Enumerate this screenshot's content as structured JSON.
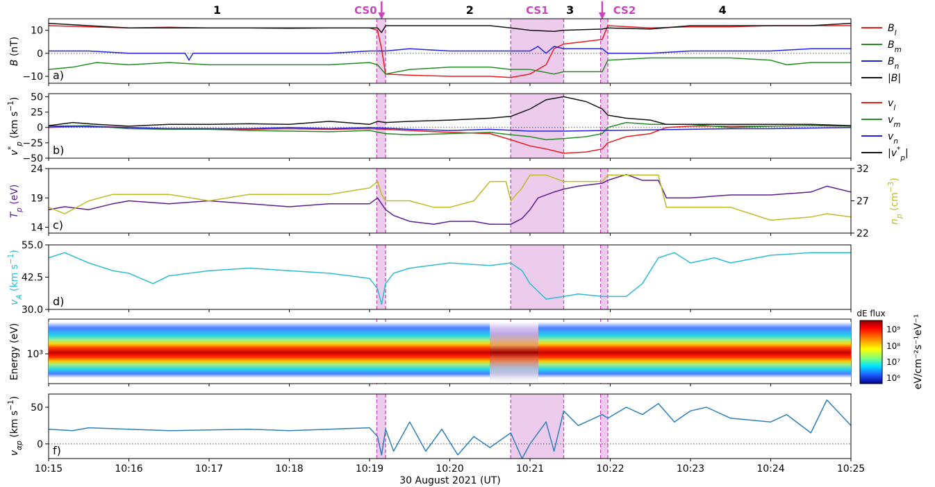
{
  "chart_data": {
    "type": "line",
    "xlabel": "30 August 2021 (UT)",
    "xticks": [
      "10:15",
      "10:16",
      "10:17",
      "10:18",
      "10:19",
      "10:20",
      "10:21",
      "10:22",
      "10:23",
      "10:24",
      "10:25"
    ],
    "xlim_min": [
      0,
      10
    ],
    "regions": [
      {
        "label": "1",
        "center_min": 2.1
      },
      {
        "label": "2",
        "center_min": 5.25
      },
      {
        "label": "3",
        "center_min": 6.5
      },
      {
        "label": "4",
        "center_min": 8.4
      }
    ],
    "current_sheets": [
      {
        "label": "CS0",
        "start_min": 4.09,
        "end_min": 4.2,
        "arrow_min": 4.15
      },
      {
        "label": "CS1",
        "start_min": 5.76,
        "end_min": 6.42
      },
      {
        "label": "CS2",
        "start_min": 6.88,
        "end_min": 6.97,
        "arrow_min": 6.9
      }
    ],
    "colors": {
      "red": "#e41a1c",
      "green": "#228b22",
      "blue": "#1f1fe0",
      "black": "#111111",
      "purple": "#5b1a8f",
      "olive": "#bcbd22",
      "cyan": "#2bbccf",
      "steel": "#2c7fb8",
      "shade": "#dda0dd",
      "cs": "#cc44bb"
    },
    "panels": [
      {
        "id": "a",
        "label": "a)",
        "ylabel": "B (nT)",
        "ylim": [
          -13,
          15
        ],
        "yticks": [
          "10",
          "0",
          "−10"
        ],
        "yticks_val": [
          10,
          0,
          -10
        ],
        "zero_line": true,
        "legend": [
          "B_l",
          "B_m",
          "B_n",
          "|B|"
        ],
        "series": [
          {
            "name": "B_l",
            "color": "red",
            "x": [
              0,
              0.5,
              1,
              1.5,
              2,
              2.5,
              3,
              3.5,
              4,
              4.1,
              4.15,
              4.2,
              4.5,
              5,
              5.5,
              5.76,
              6,
              6.2,
              6.3,
              6.42,
              6.9,
              6.97,
              7.5,
              8,
              8.5,
              9,
              9.5,
              10
            ],
            "y": [
              12,
              11.5,
              11,
              11.3,
              11,
              11,
              10.8,
              11,
              11,
              10,
              2,
              -9,
              -9.5,
              -10,
              -10,
              -10.5,
              -9,
              -5,
              2,
              4,
              6,
              12,
              11,
              11.5,
              11.5,
              12,
              12,
              12
            ]
          },
          {
            "name": "B_m",
            "color": "green",
            "x": [
              0,
              0.3,
              0.6,
              1,
              1.5,
              2,
              2.5,
              3,
              3.5,
              4,
              4.1,
              4.15,
              4.2,
              4.5,
              5,
              5.5,
              5.76,
              6,
              6.3,
              6.42,
              6.9,
              6.97,
              7.5,
              8,
              8.5,
              9,
              9.2,
              9.5,
              10
            ],
            "y": [
              -7,
              -6,
              -4,
              -5,
              -4,
              -5,
              -5,
              -5,
              -5,
              -4,
              -5,
              -7,
              -9,
              -7,
              -6,
              -6,
              -7,
              -7,
              -9,
              -8,
              -8,
              -3,
              -2,
              -2,
              -2,
              -3,
              -5,
              -4,
              -4
            ]
          },
          {
            "name": "B_n",
            "color": "blue",
            "x": [
              0,
              0.5,
              1,
              1.5,
              1.7,
              1.75,
              1.8,
              2,
              2.5,
              3,
              3.5,
              4,
              4.2,
              4.5,
              5,
              5.5,
              6,
              6.1,
              6.2,
              6.3,
              6.42,
              6.9,
              6.97,
              7.5,
              8,
              8.5,
              9,
              9.5,
              10
            ],
            "y": [
              1,
              1,
              0,
              0,
              0,
              -3,
              0,
              0,
              0,
              0,
              0,
              1,
              1,
              2,
              1,
              1,
              1,
              3,
              0,
              3,
              2,
              2,
              0,
              0,
              1,
              1,
              1,
              2,
              2
            ]
          },
          {
            "name": "|B|",
            "color": "black",
            "x": [
              0,
              0.5,
              1,
              1.5,
              2,
              2.5,
              3,
              3.5,
              4,
              4.1,
              4.15,
              4.2,
              4.5,
              5,
              5.5,
              5.76,
              6,
              6.3,
              6.42,
              6.9,
              6.97,
              7.5,
              8,
              8.5,
              9,
              9.5,
              10
            ],
            "y": [
              13,
              12,
              11,
              11,
              11,
              11,
              11,
              11,
              11,
              11,
              9,
              12,
              12,
              12,
              12,
              11,
              10,
              9.5,
              10,
              10.5,
              11,
              10.5,
              12,
              12,
              12,
              12,
              13
            ]
          }
        ]
      },
      {
        "id": "b",
        "label": "b)",
        "ylabel": "v*_p (km s⁻¹)",
        "ylim": [
          -50,
          55
        ],
        "yticks": [
          "50",
          "25",
          "0",
          "−25",
          "−50"
        ],
        "yticks_val": [
          50,
          25,
          0,
          -25,
          -50
        ],
        "zero_line": true,
        "legend": [
          "v_l",
          "v_m",
          "v_n",
          "|v*_p|"
        ],
        "series": [
          {
            "name": "v_l",
            "color": "red",
            "x": [
              0,
              0.5,
              1,
              1.5,
              2,
              2.5,
              3,
              3.5,
              4,
              4.2,
              4.5,
              5,
              5.5,
              5.76,
              6,
              6.2,
              6.42,
              6.7,
              6.9,
              6.97,
              7.2,
              7.5,
              7.7,
              8,
              8.5,
              9,
              9.5,
              10
            ],
            "y": [
              0,
              2,
              0,
              -2,
              -2,
              -3,
              -2,
              -3,
              -2,
              -3,
              -5,
              -8,
              -10,
              -20,
              -30,
              -35,
              -42,
              -40,
              -35,
              -25,
              -15,
              -10,
              0,
              2,
              2,
              2,
              3,
              2
            ]
          },
          {
            "name": "v_m",
            "color": "green",
            "x": [
              0,
              0.5,
              1,
              1.5,
              2,
              2.5,
              3,
              3.5,
              4,
              4.2,
              4.5,
              5,
              5.5,
              5.76,
              6,
              6.2,
              6.42,
              6.7,
              6.9,
              6.97,
              7.2,
              7.5,
              8,
              8.5,
              9,
              9.5,
              10
            ],
            "y": [
              2,
              3,
              -2,
              -3,
              -3,
              -5,
              -6,
              -7,
              -5,
              -10,
              -12,
              -10,
              -8,
              -12,
              -15,
              -20,
              -18,
              -15,
              -10,
              0,
              8,
              5,
              5,
              0,
              2,
              3,
              2
            ]
          },
          {
            "name": "v_n",
            "color": "blue",
            "x": [
              0,
              0.5,
              1,
              1.5,
              2,
              2.5,
              3,
              3.5,
              4,
              4.5,
              5,
              5.5,
              6,
              6.42,
              6.9,
              7.5,
              8,
              8.5,
              9,
              9.5,
              10
            ],
            "y": [
              2,
              1,
              0,
              -2,
              -2,
              -2,
              0,
              -2,
              0,
              -3,
              -5,
              -3,
              -6,
              -6,
              -5,
              -4,
              -3,
              -2,
              -2,
              -1,
              0
            ]
          },
          {
            "name": "|v*_p|",
            "color": "black",
            "x": [
              0,
              0.3,
              0.6,
              1,
              1.5,
              2,
              2.5,
              3,
              3.5,
              4,
              4.1,
              4.2,
              4.5,
              5,
              5.5,
              5.76,
              6,
              6.2,
              6.42,
              6.7,
              6.9,
              6.97,
              7.2,
              7.5,
              7.7,
              8,
              8.5,
              9,
              9.5,
              10
            ],
            "y": [
              3,
              8,
              5,
              2,
              5,
              5,
              6,
              5,
              10,
              5,
              10,
              8,
              10,
              12,
              15,
              18,
              30,
              45,
              50,
              42,
              30,
              20,
              15,
              12,
              5,
              5,
              5,
              5,
              5,
              3
            ]
          }
        ]
      },
      {
        "id": "c",
        "label": "c)",
        "ylabel": "T_p (eV)",
        "ylabel_right": "n_p (cm⁻³)",
        "ylim": [
          13,
          24
        ],
        "yticks": [
          "24",
          "19",
          "14"
        ],
        "yticks_val": [
          24,
          19,
          14
        ],
        "ylim_right": [
          22,
          32
        ],
        "yticks_right": [
          "32",
          "27",
          "22"
        ],
        "yticks_right_val": [
          32,
          27,
          22
        ],
        "series": [
          {
            "name": "T_p",
            "color": "purple",
            "axis": "left",
            "x": [
              0,
              0.2,
              0.5,
              0.8,
              1,
              1.5,
              2,
              2.5,
              3,
              3.5,
              4,
              4.1,
              4.15,
              4.2,
              4.3,
              4.5,
              4.8,
              5,
              5.3,
              5.5,
              5.76,
              5.9,
              6,
              6.1,
              6.3,
              6.42,
              6.6,
              6.9,
              6.97,
              7.2,
              7.4,
              7.6,
              7.7,
              8,
              8.5,
              9,
              9.5,
              9.7,
              10
            ],
            "y": [
              17,
              17.5,
              17,
              18,
              18.5,
              18,
              18.5,
              18,
              17.5,
              18,
              18,
              19,
              18,
              17,
              16,
              15,
              14.5,
              15,
              15,
              14.5,
              14.5,
              15.5,
              17,
              19,
              20,
              20.5,
              21,
              21.5,
              22,
              23,
              22,
              22,
              19,
              19,
              19.5,
              19.5,
              20,
              21,
              20
            ]
          },
          {
            "name": "n_p",
            "color": "olive",
            "axis": "right",
            "x": [
              0,
              0.2,
              0.5,
              0.8,
              1,
              1.5,
              2,
              2.5,
              3,
              3.5,
              4,
              4.1,
              4.15,
              4.2,
              4.5,
              4.8,
              5,
              5.3,
              5.5,
              5.7,
              5.76,
              5.9,
              6,
              6.2,
              6.42,
              6.6,
              6.9,
              6.97,
              7.2,
              7.4,
              7.6,
              7.7,
              8,
              8.5,
              9,
              9.5,
              9.7,
              10
            ],
            "y": [
              26,
              25,
              27,
              28,
              28,
              28,
              27,
              28,
              28,
              28,
              29,
              30,
              28,
              27,
              27,
              26,
              26,
              27,
              30,
              30,
              27,
              29,
              31,
              31,
              30,
              30,
              30,
              31,
              31,
              31,
              31,
              26,
              26,
              26,
              24,
              24.5,
              25,
              24.5
            ]
          }
        ]
      },
      {
        "id": "d",
        "label": "d)",
        "ylabel": "v_A (km s⁻¹)",
        "ylim": [
          30,
          55
        ],
        "yticks": [
          "55.0",
          "42.5",
          "30.0"
        ],
        "yticks_val": [
          55,
          42.5,
          30
        ],
        "series": [
          {
            "name": "v_A",
            "color": "cyan",
            "x": [
              0,
              0.2,
              0.5,
              0.8,
              1,
              1.3,
              1.5,
              2,
              2.5,
              3,
              3.5,
              4,
              4.1,
              4.15,
              4.2,
              4.3,
              4.5,
              5,
              5.5,
              5.76,
              5.9,
              6,
              6.2,
              6.42,
              6.6,
              6.9,
              6.97,
              7.2,
              7.4,
              7.6,
              7.8,
              8,
              8.3,
              8.5,
              9,
              9.5,
              10
            ],
            "y": [
              50,
              52,
              48,
              45,
              44,
              40,
              43,
              45,
              46,
              45,
              44,
              42,
              38,
              32,
              40,
              44,
              46,
              48,
              47,
              48,
              45,
              40,
              34,
              35,
              36,
              35,
              35,
              35,
              40,
              50,
              52,
              48,
              50,
              48,
              51,
              52,
              52
            ]
          }
        ]
      },
      {
        "id": "e",
        "label": "e)",
        "ylabel": "Energy (eV)",
        "ytick": "10³",
        "colorbar": {
          "title": "dE flux",
          "ticks": [
            "10⁹",
            "10⁸",
            "10⁷",
            "10⁶"
          ],
          "label": "eV/cm⁻²s⁻¹eV⁻¹"
        }
      },
      {
        "id": "f",
        "label": "f)",
        "ylabel": "v_αp (km s⁻¹)",
        "ylim": [
          -20,
          68
        ],
        "yticks": [
          "50",
          "0"
        ],
        "yticks_val": [
          50,
          0
        ],
        "zero_line": true,
        "series": [
          {
            "name": "v_αp",
            "color": "steel",
            "x": [
              0,
              0.3,
              0.5,
              1,
              1.5,
              2,
              2.5,
              3,
              3.5,
              4,
              4.1,
              4.15,
              4.2,
              4.3,
              4.5,
              4.7,
              4.9,
              5.1,
              5.3,
              5.5,
              5.76,
              5.9,
              6,
              6.2,
              6.3,
              6.42,
              6.6,
              6.9,
              6.97,
              7.2,
              7.4,
              7.6,
              7.8,
              8,
              8.2,
              8.5,
              9,
              9.2,
              9.5,
              9.7,
              10
            ],
            "y": [
              20,
              18,
              22,
              20,
              18,
              19,
              20,
              18,
              20,
              22,
              10,
              -15,
              20,
              -10,
              30,
              -10,
              20,
              -15,
              10,
              -5,
              15,
              -20,
              0,
              30,
              -10,
              45,
              25,
              40,
              35,
              50,
              40,
              55,
              30,
              45,
              50,
              35,
              30,
              40,
              15,
              60,
              25
            ]
          }
        ]
      }
    ]
  }
}
